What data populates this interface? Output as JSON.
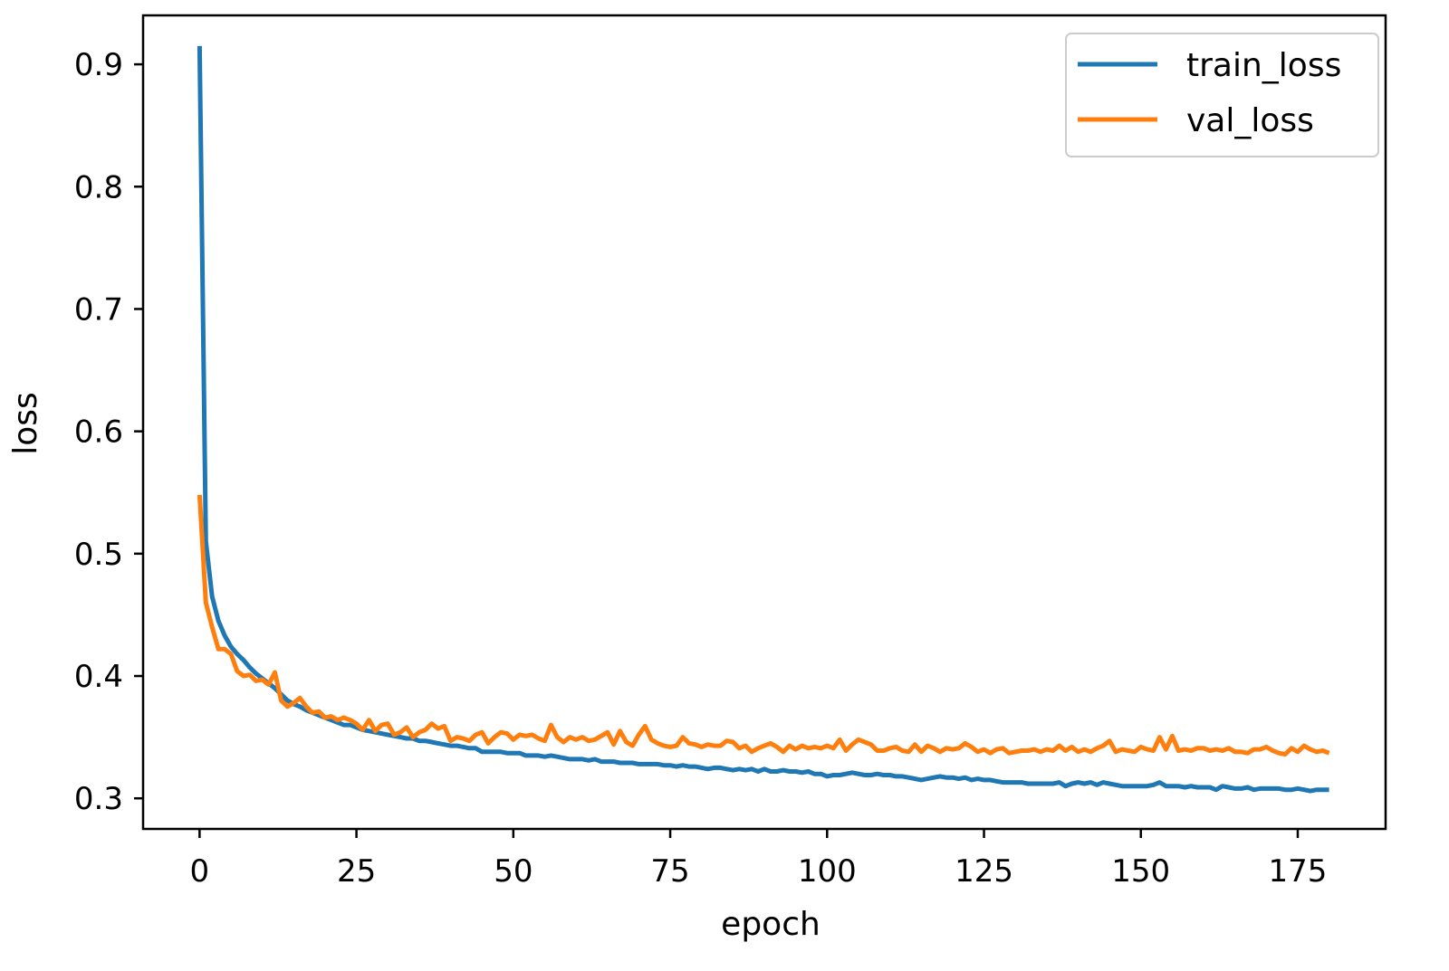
{
  "chart_data": {
    "type": "line",
    "title": "",
    "xlabel": "epoch",
    "ylabel": "loss",
    "xlim": [
      -9,
      189
    ],
    "ylim": [
      0.275,
      0.94
    ],
    "xticks": [
      0,
      25,
      50,
      75,
      100,
      125,
      150,
      175
    ],
    "yticks": [
      0.3,
      0.4,
      0.5,
      0.6,
      0.7,
      0.8,
      0.9
    ],
    "ytick_labels": [
      "0.3",
      "0.4",
      "0.5",
      "0.6",
      "0.7",
      "0.8",
      "0.9"
    ],
    "grid": false,
    "legend_position": "top-right",
    "series": [
      {
        "name": "train_loss",
        "color": "#1f77b4",
        "values": [
          0.915,
          0.51,
          0.465,
          0.445,
          0.433,
          0.424,
          0.418,
          0.413,
          0.407,
          0.402,
          0.398,
          0.394,
          0.39,
          0.385,
          0.38,
          0.377,
          0.375,
          0.372,
          0.37,
          0.368,
          0.366,
          0.364,
          0.362,
          0.36,
          0.36,
          0.358,
          0.356,
          0.355,
          0.354,
          0.353,
          0.352,
          0.351,
          0.35,
          0.349,
          0.349,
          0.347,
          0.347,
          0.346,
          0.345,
          0.344,
          0.343,
          0.343,
          0.342,
          0.341,
          0.341,
          0.338,
          0.338,
          0.338,
          0.338,
          0.337,
          0.337,
          0.337,
          0.335,
          0.335,
          0.335,
          0.334,
          0.335,
          0.334,
          0.333,
          0.332,
          0.332,
          0.332,
          0.331,
          0.332,
          0.33,
          0.33,
          0.33,
          0.329,
          0.329,
          0.329,
          0.328,
          0.328,
          0.328,
          0.328,
          0.327,
          0.327,
          0.326,
          0.327,
          0.326,
          0.326,
          0.325,
          0.324,
          0.325,
          0.325,
          0.324,
          0.323,
          0.324,
          0.323,
          0.324,
          0.322,
          0.324,
          0.322,
          0.322,
          0.323,
          0.322,
          0.322,
          0.321,
          0.322,
          0.32,
          0.32,
          0.318,
          0.319,
          0.319,
          0.32,
          0.321,
          0.32,
          0.319,
          0.319,
          0.32,
          0.319,
          0.319,
          0.318,
          0.318,
          0.317,
          0.316,
          0.315,
          0.316,
          0.317,
          0.318,
          0.317,
          0.317,
          0.316,
          0.317,
          0.315,
          0.316,
          0.315,
          0.315,
          0.314,
          0.313,
          0.313,
          0.313,
          0.313,
          0.312,
          0.312,
          0.312,
          0.312,
          0.312,
          0.313,
          0.31,
          0.312,
          0.313,
          0.312,
          0.313,
          0.311,
          0.313,
          0.312,
          0.311,
          0.31,
          0.31,
          0.31,
          0.31,
          0.31,
          0.311,
          0.313,
          0.31,
          0.31,
          0.31,
          0.309,
          0.31,
          0.309,
          0.309,
          0.309,
          0.307,
          0.31,
          0.309,
          0.308,
          0.308,
          0.309,
          0.307,
          0.308,
          0.308,
          0.308,
          0.308,
          0.307,
          0.307,
          0.308,
          0.307,
          0.306,
          0.307,
          0.307,
          0.307
        ]
      },
      {
        "name": "val_loss",
        "color": "#ff7f0e",
        "values": [
          0.548,
          0.46,
          0.44,
          0.422,
          0.422,
          0.418,
          0.404,
          0.4,
          0.401,
          0.396,
          0.397,
          0.393,
          0.403,
          0.38,
          0.375,
          0.378,
          0.382,
          0.375,
          0.37,
          0.371,
          0.366,
          0.367,
          0.364,
          0.366,
          0.364,
          0.361,
          0.356,
          0.364,
          0.355,
          0.36,
          0.361,
          0.352,
          0.354,
          0.358,
          0.35,
          0.354,
          0.356,
          0.361,
          0.357,
          0.359,
          0.347,
          0.35,
          0.349,
          0.347,
          0.352,
          0.354,
          0.345,
          0.35,
          0.354,
          0.353,
          0.348,
          0.352,
          0.351,
          0.352,
          0.349,
          0.347,
          0.36,
          0.35,
          0.346,
          0.35,
          0.348,
          0.35,
          0.347,
          0.348,
          0.351,
          0.354,
          0.344,
          0.355,
          0.346,
          0.343,
          0.352,
          0.359,
          0.348,
          0.345,
          0.343,
          0.342,
          0.343,
          0.35,
          0.345,
          0.344,
          0.342,
          0.344,
          0.343,
          0.343,
          0.347,
          0.346,
          0.341,
          0.343,
          0.338,
          0.341,
          0.343,
          0.345,
          0.342,
          0.338,
          0.343,
          0.34,
          0.343,
          0.341,
          0.342,
          0.341,
          0.343,
          0.341,
          0.348,
          0.339,
          0.344,
          0.348,
          0.346,
          0.344,
          0.339,
          0.339,
          0.341,
          0.342,
          0.339,
          0.338,
          0.344,
          0.338,
          0.343,
          0.341,
          0.338,
          0.341,
          0.34,
          0.341,
          0.345,
          0.342,
          0.338,
          0.34,
          0.337,
          0.34,
          0.341,
          0.337,
          0.338,
          0.339,
          0.339,
          0.34,
          0.338,
          0.34,
          0.339,
          0.343,
          0.339,
          0.342,
          0.338,
          0.34,
          0.338,
          0.341,
          0.343,
          0.347,
          0.338,
          0.34,
          0.339,
          0.338,
          0.342,
          0.34,
          0.339,
          0.35,
          0.34,
          0.351,
          0.339,
          0.34,
          0.339,
          0.341,
          0.341,
          0.339,
          0.34,
          0.339,
          0.341,
          0.338,
          0.338,
          0.337,
          0.34,
          0.34,
          0.342,
          0.339,
          0.337,
          0.336,
          0.341,
          0.338,
          0.343,
          0.34,
          0.338,
          0.339,
          0.337
        ]
      }
    ]
  }
}
